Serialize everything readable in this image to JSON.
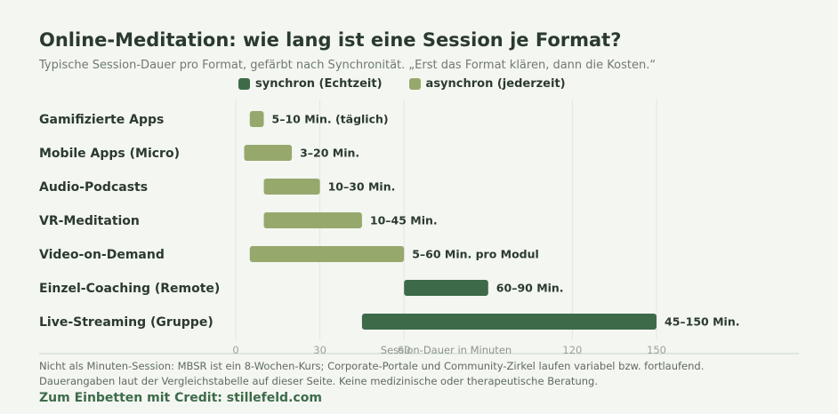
{
  "header": {
    "title": "Online-Meditation: wie lang ist eine Session je Format?",
    "subtitle": "Typische Session-Dauer pro Format, gefärbt nach Synchronität. „Erst das Format klären, dann die Kosten.“"
  },
  "legend": {
    "items": [
      {
        "label": "synchron (Echtzeit)",
        "color": "#3d6b4a"
      },
      {
        "label": "asynchron (jederzeit)",
        "color": "#97a86c"
      }
    ]
  },
  "chart_data": {
    "type": "bar",
    "orientation": "horizontal-range",
    "xlabel": "Session-Dauer in Minuten",
    "xlim": [
      0,
      150
    ],
    "xticks": [
      0,
      30,
      60,
      120,
      150
    ],
    "grid": true,
    "legend_position": "top",
    "colors": {
      "synchron": "#3d6b4a",
      "asynchron": "#97a86c"
    },
    "series": [
      {
        "name": "synchron (Echtzeit)",
        "key": "synchron"
      },
      {
        "name": "asynchron (jederzeit)",
        "key": "asynchron"
      }
    ],
    "rows": [
      {
        "category": "Gamifizierte Apps",
        "start": 5,
        "end": 10,
        "type": "asynchron",
        "label": "5–10 Min. (täglich)"
      },
      {
        "category": "Mobile Apps (Micro)",
        "start": 3,
        "end": 20,
        "type": "asynchron",
        "label": "3–20 Min."
      },
      {
        "category": "Audio-Podcasts",
        "start": 10,
        "end": 30,
        "type": "asynchron",
        "label": "10–30 Min."
      },
      {
        "category": "VR-Meditation",
        "start": 10,
        "end": 45,
        "type": "asynchron",
        "label": "10–45 Min."
      },
      {
        "category": "Video-on-Demand",
        "start": 5,
        "end": 60,
        "type": "asynchron",
        "label": "5–60 Min. pro Modul"
      },
      {
        "category": "Einzel-Coaching (Remote)",
        "start": 60,
        "end": 90,
        "type": "synchron",
        "label": "60–90 Min."
      },
      {
        "category": "Live-Streaming (Gruppe)",
        "start": 45,
        "end": 150,
        "type": "synchron",
        "label": "45–150 Min."
      }
    ]
  },
  "footer": {
    "note_line1": "Nicht als Minuten-Session: MBSR ist ein 8-Wochen-Kurs; Corporate-Portale und Community-Zirkel laufen variabel bzw. fortlaufend.",
    "note_line2": "Dauerangaben laut der Vergleichstabelle auf dieser Seite. Keine medizinische oder therapeutische Beratung.",
    "credit": "Zum Einbetten mit Credit: stillefeld.com"
  }
}
